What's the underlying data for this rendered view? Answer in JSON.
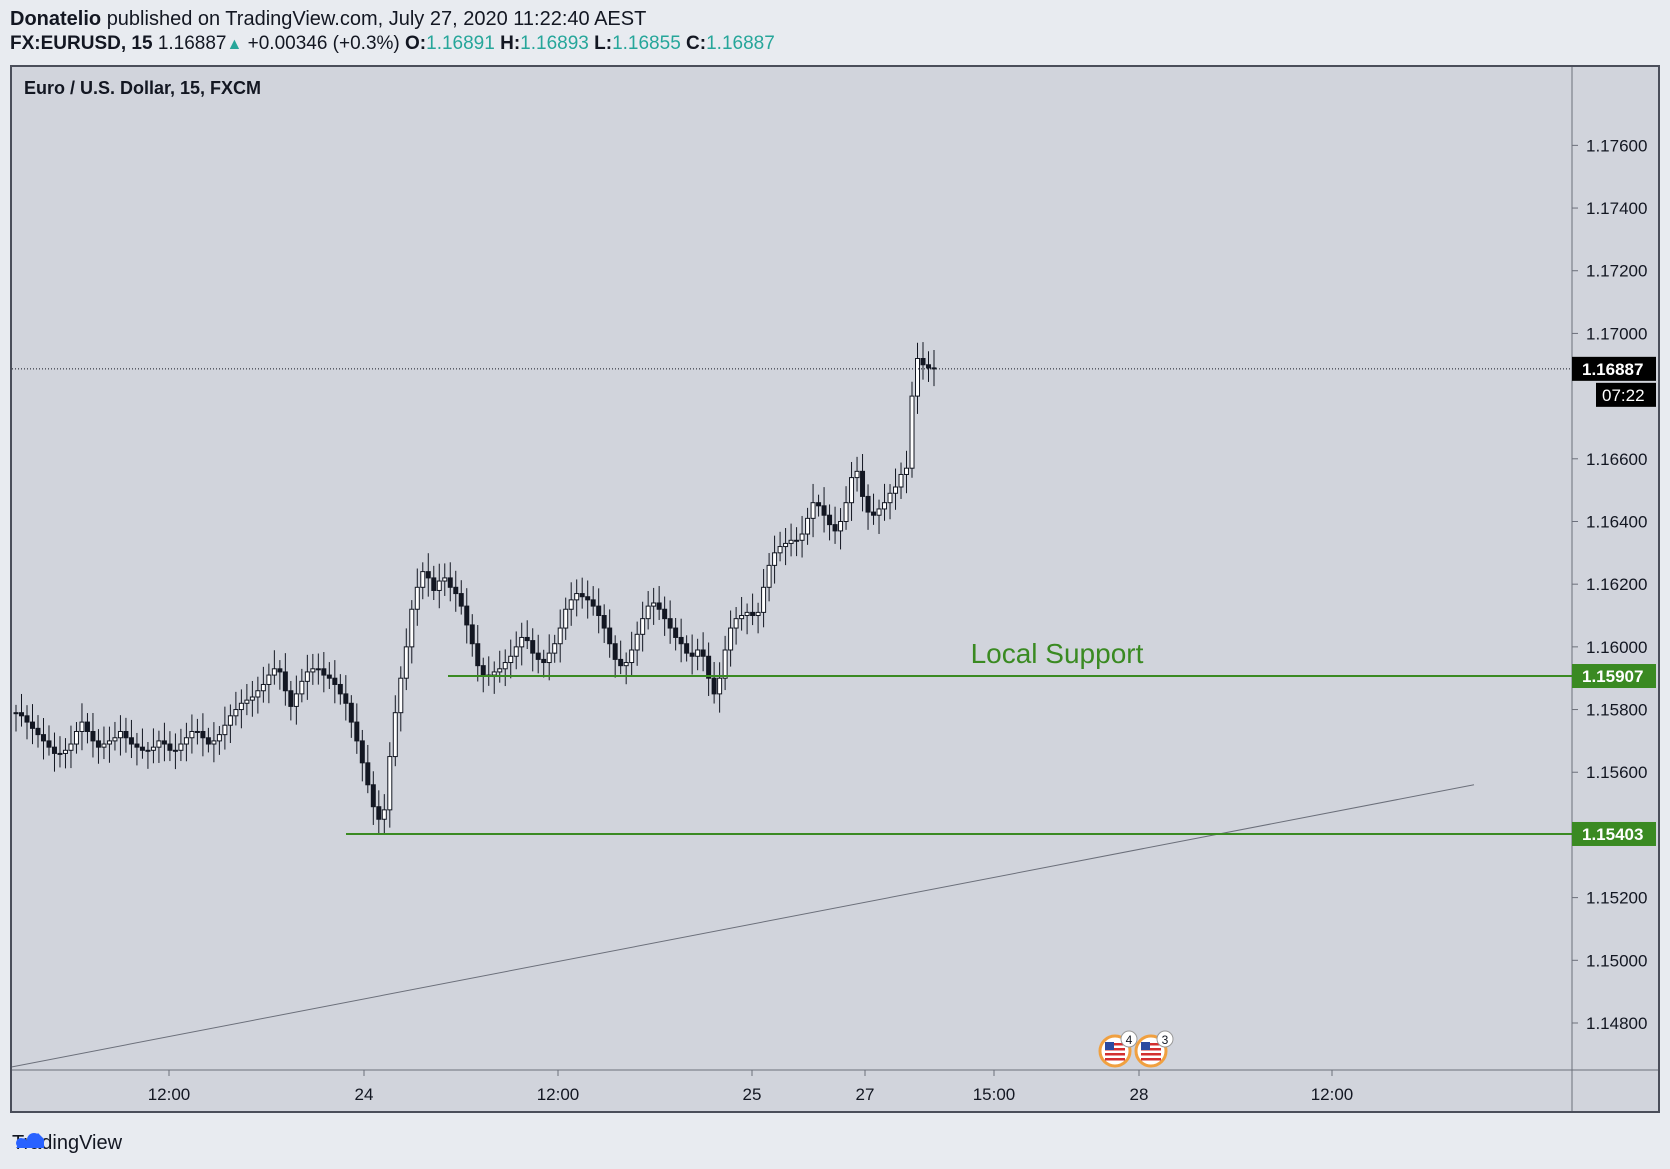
{
  "header": {
    "author": "Donatelio",
    "published_text": "published on TradingView.com, July 27, 2020 11:22:40 AEST",
    "symbol": "FX:EURUSD, 15",
    "last": "1.16887",
    "change": "+0.00346 (+0.3%)",
    "o_label": "O:",
    "o_value": "1.16891",
    "h_label": "H:",
    "h_value": "1.16893",
    "l_label": "L:",
    "l_value": "1.16855",
    "c_label": "C:",
    "c_value": "1.16887"
  },
  "footer": {
    "brand": "TradingView",
    "logo_icon": "tradingview-logo-icon"
  },
  "colors": {
    "pane_bg": "#d1d4dc",
    "candle": "#131722",
    "support": "#3a8a22",
    "trendline": "#6b6f7a",
    "price_label_bg": "#000000",
    "support_label_bg": "#3a8a22"
  },
  "chart_data": {
    "type": "candlestick",
    "title": "Euro / U.S. Dollar, 15, FXCM",
    "y_ticks": [
      "1.17600",
      "1.17400",
      "1.17200",
      "1.17000",
      "1.16600",
      "1.16400",
      "1.16200",
      "1.16000",
      "1.15800",
      "1.15600",
      "1.15200",
      "1.15000",
      "1.14800"
    ],
    "x_ticks": [
      "12:00",
      "24",
      "12:00",
      "25",
      "27",
      "15:00",
      "28",
      "12:00"
    ],
    "ylim": [
      1.1465,
      1.1785
    ],
    "last_price": {
      "value": 1.16887,
      "label": "1.16887",
      "countdown": "07:22"
    },
    "horizontal_lines": [
      {
        "value": 1.15907,
        "label": "1.15907",
        "annotation": "Local Support"
      },
      {
        "value": 1.15403,
        "label": "1.15403",
        "annotation": ""
      }
    ],
    "trendline": {
      "from": 1.1466,
      "to": 1.1556
    },
    "event_badges": [
      {
        "icon": "us-flag-icon",
        "count": "4"
      },
      {
        "icon": "us-flag-icon",
        "count": "3"
      }
    ],
    "candle_closes": [
      1.1579,
      1.1578,
      1.1576,
      1.1574,
      1.1572,
      1.157,
      1.1568,
      1.1566,
      1.1566,
      1.1567,
      1.1569,
      1.1573,
      1.1576,
      1.1573,
      1.157,
      1.1568,
      1.1569,
      1.157,
      1.1571,
      1.1573,
      1.1571,
      1.1569,
      1.1568,
      1.1567,
      1.1567,
      1.1568,
      1.157,
      1.1569,
      1.1567,
      1.1567,
      1.1569,
      1.1571,
      1.1573,
      1.1573,
      1.1571,
      1.1569,
      1.157,
      1.1572,
      1.1575,
      1.1578,
      1.158,
      1.1582,
      1.1583,
      1.1584,
      1.1586,
      1.1588,
      1.1591,
      1.1593,
      1.1592,
      1.1586,
      1.1581,
      1.1585,
      1.1589,
      1.1592,
      1.1593,
      1.1593,
      1.1591,
      1.159,
      1.1588,
      1.1585,
      1.1582,
      1.1576,
      1.157,
      1.1563,
      1.1556,
      1.1549,
      1.1545,
      1.1548,
      1.1565,
      1.1579,
      1.159,
      1.16,
      1.1612,
      1.1619,
      1.1624,
      1.1622,
      1.1618,
      1.1621,
      1.1622,
      1.1619,
      1.1617,
      1.1613,
      1.1607,
      1.1601,
      1.1594,
      1.1591,
      1.1591,
      1.1592,
      1.1593,
      1.1595,
      1.1597,
      1.16,
      1.1603,
      1.1602,
      1.1598,
      1.1596,
      1.1595,
      1.1598,
      1.1601,
      1.1606,
      1.1612,
      1.1615,
      1.1617,
      1.1616,
      1.1615,
      1.1613,
      1.161,
      1.1606,
      1.1601,
      1.1596,
      1.1594,
      1.1595,
      1.1599,
      1.1604,
      1.1609,
      1.1613,
      1.1614,
      1.1612,
      1.1609,
      1.1606,
      1.1603,
      1.1601,
      1.1598,
      1.1597,
      1.1599,
      1.1597,
      1.159,
      1.1585,
      1.159,
      1.1599,
      1.1606,
      1.1609,
      1.161,
      1.1611,
      1.161,
      1.1611,
      1.1619,
      1.1626,
      1.163,
      1.1632,
      1.1633,
      1.1634,
      1.1634,
      1.1636,
      1.1641,
      1.1646,
      1.1645,
      1.1642,
      1.1639,
      1.1637,
      1.164,
      1.1646,
      1.1654,
      1.1656,
      1.1648,
      1.1643,
      1.1642,
      1.1644,
      1.1646,
      1.1649,
      1.1651,
      1.1655,
      1.1657,
      1.168,
      1.1692,
      1.169,
      1.1689,
      1.1689
    ]
  }
}
